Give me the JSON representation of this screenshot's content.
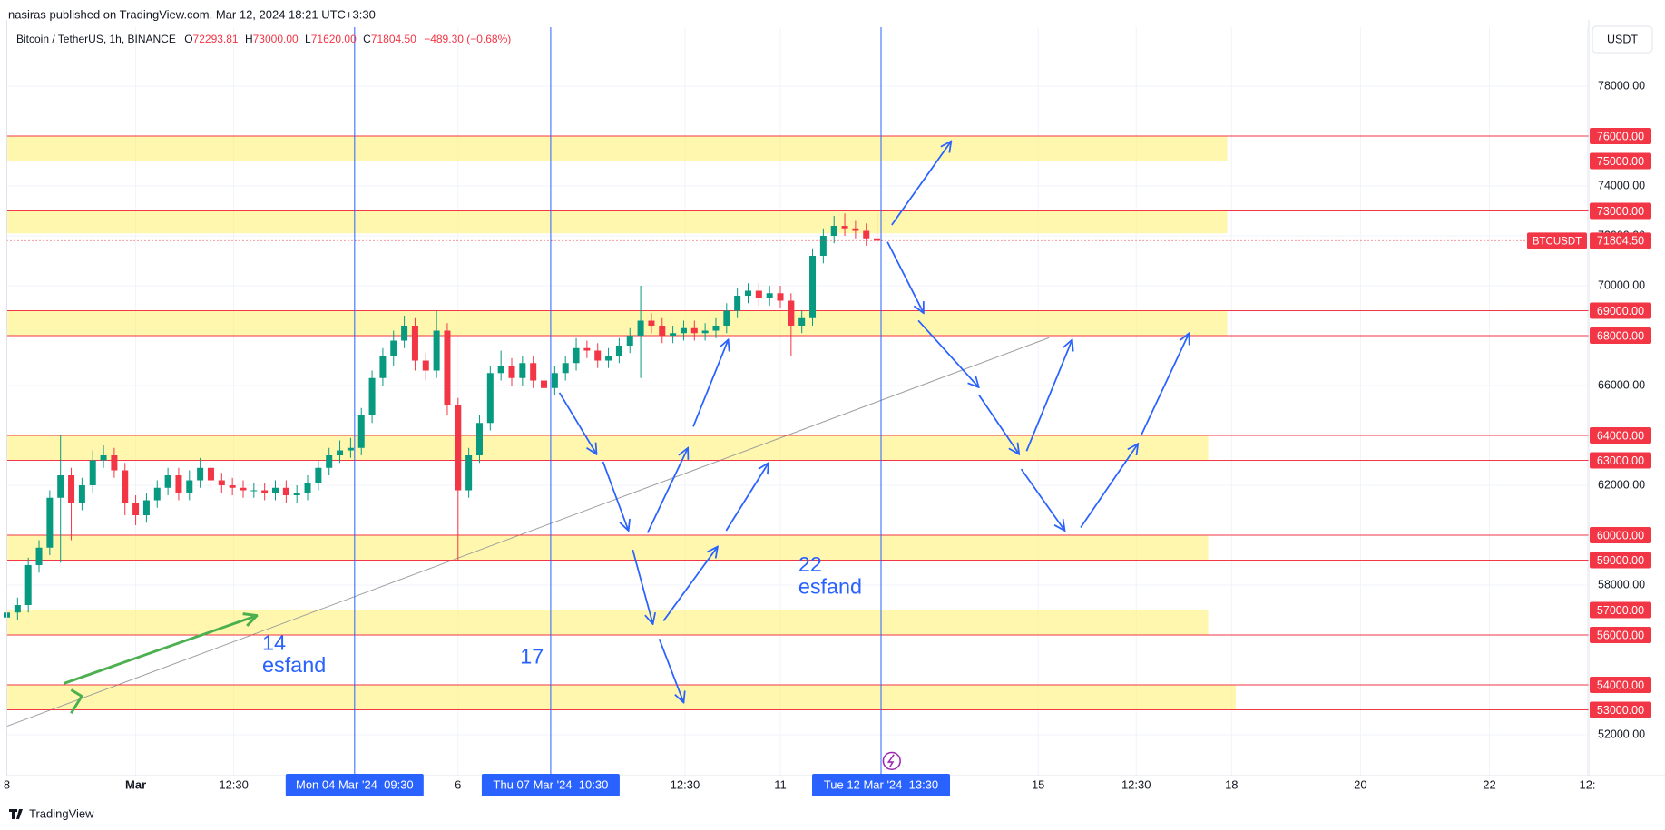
{
  "chart_data": {
    "type": "candlestick",
    "publisher": "nasiras published on TradingView.com, Mar 12, 2024 18:21 UTC+3:30",
    "symbol": "Bitcoin / TetherUS, 1h, BINANCE",
    "ohlc_labels": [
      "O",
      "H",
      "L",
      "C"
    ],
    "ohlc": [
      "72293.81",
      "73000.00",
      "71620.00",
      "71804.50"
    ],
    "change": "−489.30 (−0.68%)",
    "currency": "USDT",
    "up_color": "#089981",
    "down_color": "#f23645",
    "x": [
      0,
      4,
      8,
      12,
      16,
      20,
      24,
      28,
      32,
      36,
      40,
      44,
      48,
      52,
      56,
      60,
      64,
      68,
      72,
      76,
      80,
      84,
      88,
      92,
      96,
      100,
      104,
      108,
      112,
      116,
      120,
      124,
      128,
      132,
      136,
      140,
      144,
      148,
      152,
      156,
      160,
      164,
      168,
      172,
      176,
      180,
      184,
      188,
      192,
      196,
      200,
      204,
      208,
      212,
      216,
      220,
      224,
      228,
      232,
      236,
      240,
      244,
      248,
      252,
      256,
      260,
      264,
      268,
      272,
      276,
      280,
      284,
      288,
      292,
      296,
      300,
      304,
      308,
      312,
      316,
      320,
      324
    ],
    "open": [
      56700,
      56900,
      57200,
      58800,
      59500,
      61500,
      62400,
      61300,
      62000,
      63000,
      63200,
      62600,
      61300,
      60800,
      61400,
      61900,
      62400,
      61700,
      62200,
      62700,
      62200,
      62000,
      61900,
      61800,
      61800,
      61700,
      61900,
      61600,
      61700,
      62100,
      62700,
      63200,
      63400,
      63500,
      64800,
      66300,
      67200,
      67800,
      68400,
      67000,
      66600,
      68200,
      65200,
      61800,
      63200,
      64500,
      66500,
      66800,
      66300,
      66900,
      66200,
      65900,
      66500,
      66900,
      67500,
      67400,
      67000,
      67200,
      67600,
      68000,
      68600,
      68400,
      68000,
      68100,
      68300,
      68100,
      68200,
      68400,
      69000,
      69600,
      69800,
      69500,
      69700,
      69400,
      68400,
      68700,
      71200,
      72000,
      72400,
      72300,
      72200,
      71900
    ],
    "high": [
      57200,
      57500,
      59100,
      59800,
      61800,
      64000,
      62700,
      62300,
      63400,
      63600,
      63500,
      62900,
      61600,
      61700,
      62200,
      62700,
      62700,
      62600,
      63100,
      63000,
      62500,
      62300,
      62200,
      62100,
      62100,
      62200,
      62200,
      62000,
      62400,
      63000,
      63500,
      63800,
      63900,
      65100,
      66600,
      67500,
      68200,
      68800,
      68700,
      67300,
      69000,
      68500,
      65500,
      63500,
      64800,
      66800,
      67400,
      67100,
      67200,
      67200,
      66500,
      66800,
      67200,
      67900,
      67800,
      67700,
      67500,
      67900,
      68300,
      70000,
      68900,
      68700,
      68400,
      68600,
      68600,
      68500,
      68700,
      69300,
      69900,
      70100,
      70100,
      70000,
      70000,
      69700,
      69000,
      71500,
      72300,
      72800,
      72900,
      72600,
      72500,
      73000
    ],
    "low": [
      56400,
      56600,
      56900,
      58500,
      59200,
      58900,
      59800,
      61000,
      61700,
      62700,
      62300,
      60800,
      60400,
      60500,
      61100,
      61600,
      61400,
      61400,
      61900,
      61900,
      61700,
      61600,
      61500,
      61500,
      61400,
      61400,
      61300,
      61300,
      61400,
      61800,
      62400,
      62900,
      63100,
      63200,
      64500,
      66000,
      66800,
      67500,
      66600,
      66200,
      66300,
      64800,
      59000,
      61500,
      62900,
      64200,
      66200,
      66000,
      66000,
      65900,
      65600,
      65600,
      66200,
      66600,
      67100,
      66700,
      66700,
      66900,
      67300,
      66300,
      68100,
      67700,
      67700,
      67800,
      67800,
      67800,
      67900,
      68100,
      68700,
      69300,
      69200,
      69200,
      69100,
      67200,
      68100,
      68400,
      70900,
      71700,
      72000,
      71900,
      71600,
      71620
    ],
    "close": [
      56900,
      57200,
      58800,
      59500,
      61500,
      62400,
      61300,
      62000,
      63000,
      63200,
      62600,
      61300,
      60800,
      61400,
      61900,
      62400,
      61700,
      62200,
      62700,
      62200,
      62000,
      61900,
      61800,
      61800,
      61700,
      61900,
      61600,
      61700,
      62100,
      62700,
      63200,
      63400,
      63500,
      64800,
      66300,
      67200,
      67800,
      68400,
      67000,
      66600,
      68200,
      65200,
      61800,
      63200,
      64500,
      66500,
      66800,
      66300,
      66900,
      66200,
      65900,
      66500,
      66900,
      67500,
      67400,
      67000,
      67200,
      67600,
      68000,
      68600,
      68400,
      68000,
      68100,
      68300,
      68100,
      68200,
      68400,
      69000,
      69600,
      69800,
      69500,
      69700,
      69400,
      68400,
      68700,
      71200,
      72000,
      72400,
      72300,
      72200,
      71900,
      71804.5
    ],
    "xlim": [
      0,
      589
    ],
    "xticks": [
      {
        "value": 0,
        "label": "8"
      },
      {
        "value": 48,
        "label": "Mar"
      },
      {
        "value": 84.5,
        "label": "12:30"
      },
      {
        "value": 168,
        "label": "6"
      },
      {
        "value": 252.5,
        "label": "12:30"
      },
      {
        "value": 288,
        "label": "11"
      },
      {
        "value": 384,
        "label": "15"
      },
      {
        "value": 420.5,
        "label": "12:30"
      },
      {
        "value": 456,
        "label": "18"
      },
      {
        "value": 504,
        "label": "20"
      },
      {
        "value": 552,
        "label": "22"
      },
      {
        "value": 588.5,
        "label": "12:"
      }
    ],
    "ylim": [
      50364,
      80364
    ],
    "yticks": [
      {
        "value": 52000,
        "label": "52000.00"
      },
      {
        "value": 54000,
        "label": "54000.00"
      },
      {
        "value": 56000,
        "label": "56000.00"
      },
      {
        "value": 58000,
        "label": "58000.00"
      },
      {
        "value": 60000,
        "label": "60000.00"
      },
      {
        "value": 62000,
        "label": "62000.00"
      },
      {
        "value": 64000,
        "label": "64000.00"
      },
      {
        "value": 66000,
        "label": "66000.00"
      },
      {
        "value": 68000,
        "label": "68000.00"
      },
      {
        "value": 70000,
        "label": "70000.00"
      },
      {
        "value": 72000,
        "label": "72000.00"
      },
      {
        "value": 74000,
        "label": "74000.00"
      },
      {
        "value": 76000,
        "label": "76000.00"
      },
      {
        "value": 78000,
        "label": "78000.00"
      }
    ],
    "grid": true,
    "level_color": "#f23645",
    "levels": [
      {
        "value": 76000,
        "label": "76000.00"
      },
      {
        "value": 75000,
        "label": "75000.00"
      },
      {
        "value": 73000,
        "label": "73000.00"
      },
      {
        "value": 69000,
        "label": "69000.00"
      },
      {
        "value": 68000,
        "label": "68000.00"
      },
      {
        "value": 64000,
        "label": "64000.00"
      },
      {
        "value": 63000,
        "label": "63000.00"
      },
      {
        "value": 60000,
        "label": "60000.00"
      },
      {
        "value": 59000,
        "label": "59000.00"
      },
      {
        "value": 57000,
        "label": "57000.00"
      },
      {
        "value": 56000,
        "label": "56000.00"
      },
      {
        "value": 54000,
        "label": "54000.00"
      },
      {
        "value": 53000,
        "label": "53000.00"
      }
    ],
    "zone_color": "#fff176",
    "zones": [
      {
        "low": 75000,
        "high": 76000,
        "end": 454.4
      },
      {
        "low": 72100,
        "high": 73000,
        "end": 454.4
      },
      {
        "low": 68000,
        "high": 69000,
        "end": 454.4
      },
      {
        "low": 63000,
        "high": 64000,
        "end": 447.3
      },
      {
        "low": 59000,
        "high": 60000,
        "end": 447.3
      },
      {
        "low": 56000,
        "high": 57000,
        "end": 447.3
      },
      {
        "low": 53000,
        "high": 54000,
        "end": 457.6
      }
    ],
    "last_price": {
      "name": "BTCUSDT",
      "value": 71804.5,
      "label": "71804.50"
    },
    "marker_color": "#2962ff",
    "markers": [
      {
        "value": 129.5,
        "label": "Mon 04 Mar '24  09:30"
      },
      {
        "value": 202.5,
        "label": "Thu 07 Mar '24  10:30"
      },
      {
        "value": 325.5,
        "label": "Tue 12 Mar '24  13:30"
      }
    ],
    "trendline": {
      "x": [
        0,
        388
      ],
      "y": [
        52340,
        67915
      ]
    },
    "annotations": [
      [
        "14",
        "esfand"
      ],
      [
        "17"
      ],
      [
        "22",
        "esfand"
      ]
    ],
    "footer": "TradingView"
  }
}
